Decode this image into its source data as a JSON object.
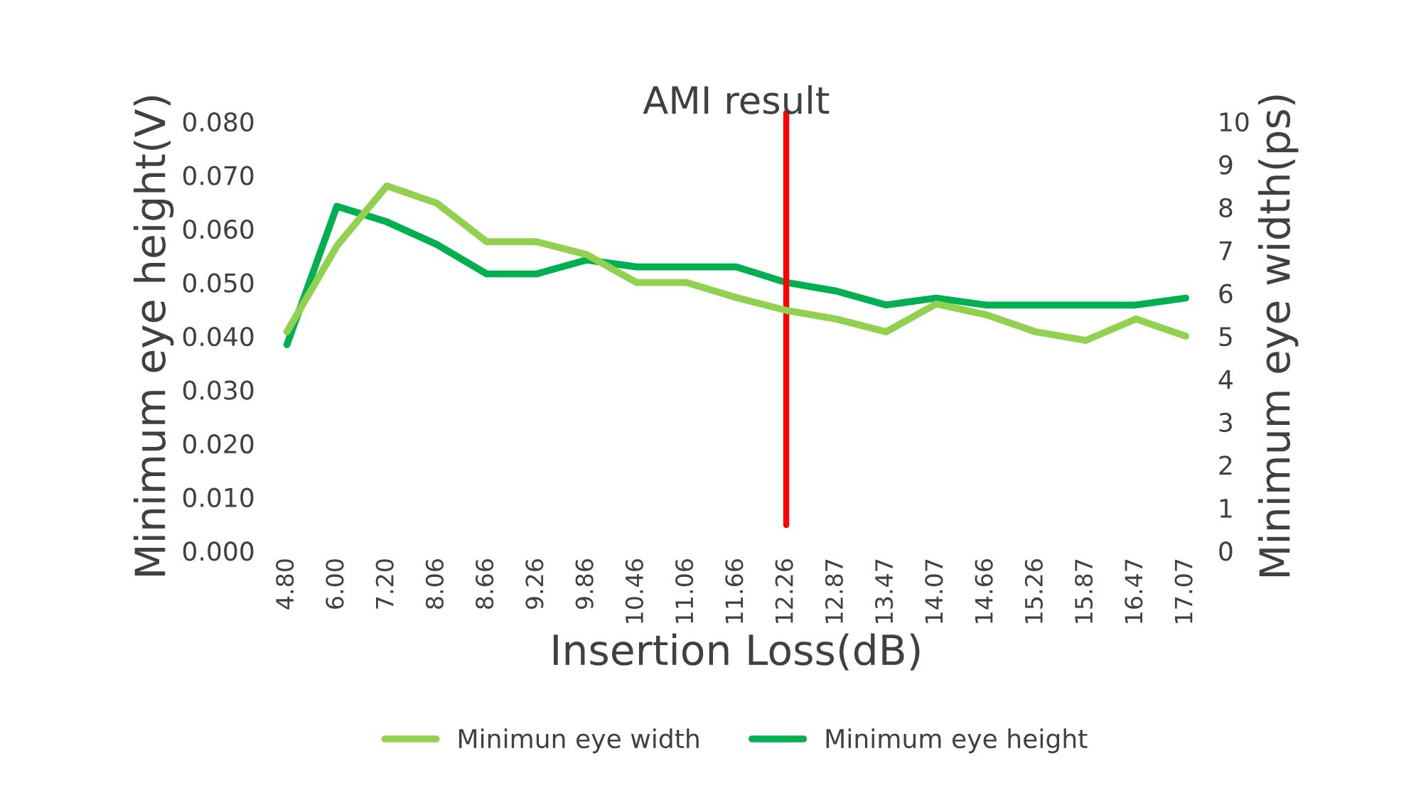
{
  "chart_data": {
    "type": "line",
    "title": "AMI result",
    "xlabel": "Insertion Loss(dB)",
    "ylabel": "Minimum eye height(V)",
    "y2label": "Minimum eye width(ps)",
    "categories": [
      "4.80",
      "6.00",
      "7.20",
      "8.06",
      "8.66",
      "9.26",
      "9.86",
      "10.46",
      "11.06",
      "11.66",
      "12.26",
      "12.87",
      "13.47",
      "14.07",
      "14.66",
      "15.26",
      "15.87",
      "16.47",
      "17.07"
    ],
    "series": [
      {
        "name": "Minimun eye width",
        "color": "#92d050",
        "axis": "y2",
        "values": [
          5.1,
          7.1,
          8.5,
          8.1,
          7.2,
          7.2,
          6.9,
          6.25,
          6.25,
          5.9,
          5.6,
          5.4,
          5.1,
          5.75,
          5.5,
          5.1,
          4.9,
          5.4,
          5.0
        ]
      },
      {
        "name": "Minimum eye height",
        "color": "#00b050",
        "axis": "y",
        "values": [
          0.0384,
          0.0642,
          0.0613,
          0.0571,
          0.0516,
          0.0516,
          0.0542,
          0.0529,
          0.0529,
          0.0529,
          0.05,
          0.0484,
          0.0458,
          0.0471,
          0.0458,
          0.0458,
          0.0458,
          0.0458,
          0.0471
        ]
      }
    ],
    "ylim": [
      0,
      0.08
    ],
    "yticks": [
      {
        "value": 0,
        "label": "0.000"
      },
      {
        "value": 0.01,
        "label": "0.010"
      },
      {
        "value": 0.02,
        "label": "0.020"
      },
      {
        "value": 0.03,
        "label": "0.030"
      },
      {
        "value": 0.04,
        "label": "0.040"
      },
      {
        "value": 0.05,
        "label": "0.050"
      },
      {
        "value": 0.06,
        "label": "0.060"
      },
      {
        "value": 0.07,
        "label": "0.070"
      },
      {
        "value": 0.08,
        "label": "0.080"
      }
    ],
    "y2lim": [
      0,
      10
    ],
    "y2ticks": [
      0,
      1,
      2,
      3,
      4,
      5,
      6,
      7,
      8,
      9,
      10
    ],
    "ref_lines": [
      {
        "axis": "x",
        "value": "12.26",
        "color": "#ff0000"
      }
    ],
    "grid": false,
    "legend": "bottom",
    "marker": "none",
    "line_style": "solid"
  }
}
